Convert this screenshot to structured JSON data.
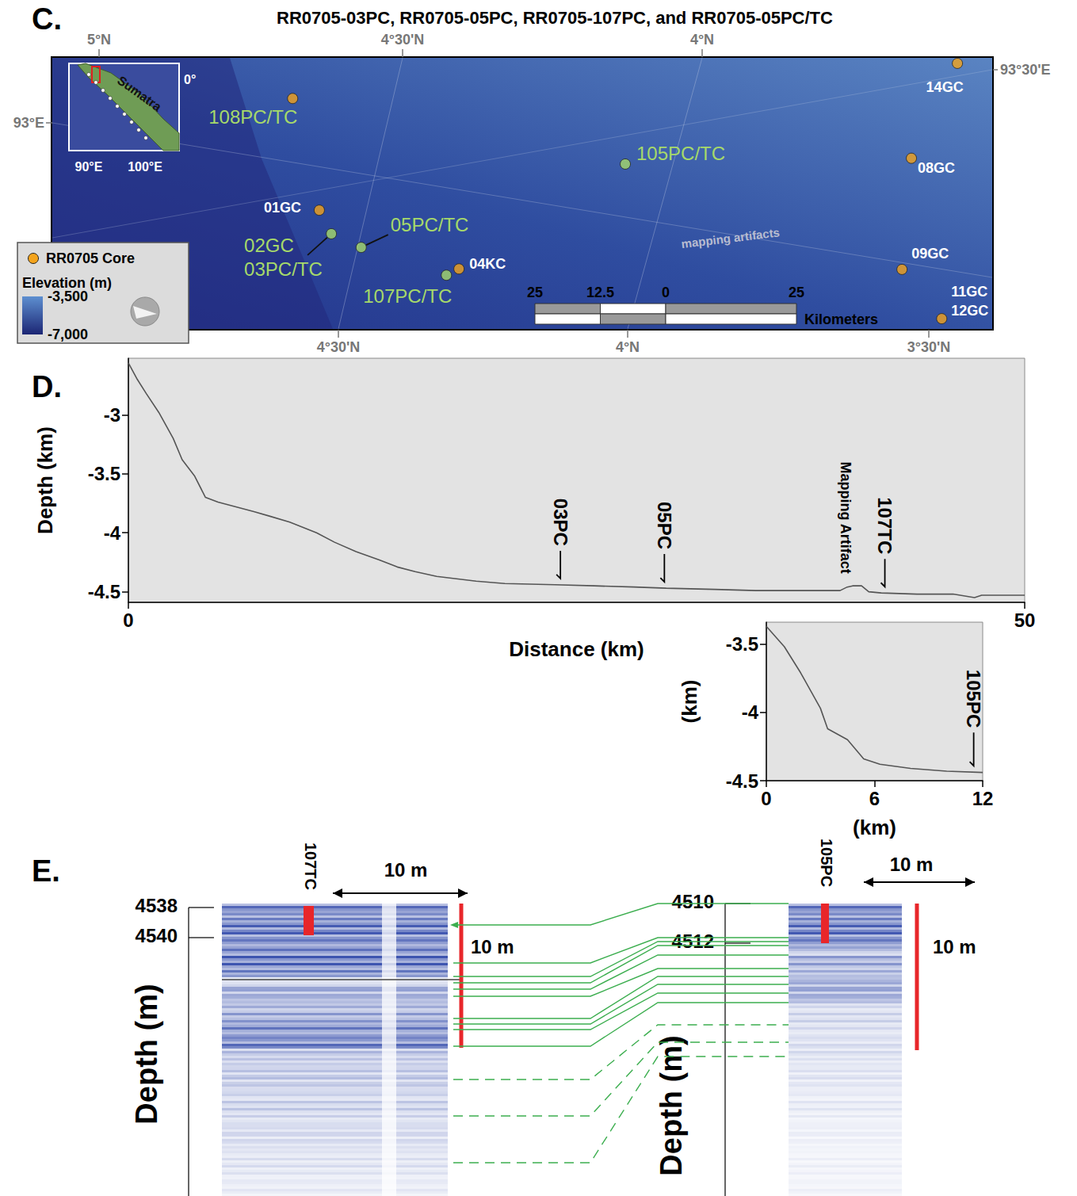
{
  "chart_data": [
    {
      "type": "scatter",
      "letter": "C.",
      "title": "RR0705-03PC, RR0705-05PC, RR0705-107PC, and RR0705-05PC/TC",
      "xlim": [
        0,
        180
      ],
      "ylim": [
        0,
        52
      ],
      "tick_labels": false,
      "grid": false,
      "legend": "bottom-left",
      "series": [
        {
          "name": "RR0705 Core",
          "color": "#f4a41d",
          "marker": "circle",
          "labels": [
            "108PC/TC",
            "01GC",
            "02GC\n03PC/TC",
            "05PC/TC",
            "107PC/TC",
            "04KC",
            "105PC/TC",
            "14GC",
            "08GC",
            "09GC",
            "11GC\n12GC"
          ],
          "x": [
            46.1,
            51.2,
            53.5,
            59.2,
            75.5,
            77.9,
            109.7,
            173.2,
            164.4,
            162.6,
            170.2
          ],
          "y": [
            44.1,
            22.8,
            18.3,
            15.7,
            10.4,
            11.6,
            31.6,
            50.8,
            32.7,
            11.5,
            2.1
          ],
          "colors": [
            "#f4a41d",
            "#f4a41d",
            "#a6d96a",
            "#a6d96a",
            "#a6d96a",
            "#f4a41d",
            "#a6d96a",
            "#f4a41d",
            "#f4a41d",
            "#f4a41d",
            "#f4a41d"
          ]
        }
      ],
      "graticule": {
        "top": [
          "5°N",
          "4°30'N",
          "4°N"
        ],
        "bottom": [
          "4°30'N",
          "4°N",
          "3°30'N"
        ],
        "left": [
          "93°E"
        ],
        "right": [
          "93°30'E"
        ]
      },
      "notes": [
        {
          "text": "mapping artifacts",
          "x": 129.8,
          "y": 17.5
        }
      ],
      "inset": {
        "land": "Sumatra",
        "latitude": "0°",
        "longitudes": [
          "90°E",
          "100°E"
        ]
      },
      "elevation_legend": {
        "title": "Elevation (m)",
        "range": [
          -3500,
          -7000
        ],
        "ticks": [
          {
            "value": -3500,
            "label": "-3,500"
          },
          {
            "value": -7000,
            "label": "-7,000"
          }
        ]
      },
      "scale_bar": {
        "unit": "Kilometers",
        "ticks": [
          {
            "value": -25,
            "label": "25"
          },
          {
            "value": -12.5,
            "label": "12.5"
          },
          0,
          25
        ]
      }
    },
    {
      "type": "line",
      "letter": "D.",
      "x_label": "Distance (km)",
      "y_label": "Depth (km)",
      "xlim": [
        0,
        50
      ],
      "xticks": [
        0,
        50
      ],
      "ylim": [
        -4.59,
        -2.52
      ],
      "yticks": [
        -4.5,
        -4,
        -3.5,
        -3
      ],
      "color": "#555555",
      "x": [
        0,
        0.5,
        1,
        1.7,
        2.5,
        3,
        3.7,
        4.3,
        5,
        6,
        7,
        7.9,
        9,
        10.5,
        11.5,
        12.7,
        14,
        15,
        16,
        17.2,
        18.3,
        19.4,
        21,
        23.8,
        26,
        28.2,
        30,
        32.7,
        35,
        38,
        39.7,
        40.1,
        40.4,
        40.9,
        41.3,
        42,
        44,
        46,
        47.2,
        47.6,
        48.1,
        50
      ],
      "values": [
        -2.56,
        -2.7,
        -2.82,
        -2.98,
        -3.2,
        -3.38,
        -3.52,
        -3.7,
        -3.74,
        -3.78,
        -3.82,
        -3.86,
        -3.91,
        -4.0,
        -4.08,
        -4.16,
        -4.23,
        -4.29,
        -4.33,
        -4.37,
        -4.39,
        -4.41,
        -4.43,
        -4.44,
        -4.45,
        -4.46,
        -4.47,
        -4.48,
        -4.49,
        -4.49,
        -4.49,
        -4.46,
        -4.45,
        -4.45,
        -4.5,
        -4.51,
        -4.52,
        -4.52,
        -4.55,
        -4.53,
        -4.53,
        -4.53
      ],
      "core_markers": [
        {
          "text": "03PC",
          "x": 24.1
        },
        {
          "text": "05PC",
          "x": 29.9
        },
        {
          "text": "107TC",
          "x": 42.2
        }
      ],
      "notes": [
        {
          "text": "Mapping Artifact",
          "x": 40.0
        }
      ]
    },
    {
      "type": "line",
      "x_label": "(km)",
      "y_label": "(km)",
      "xlim": [
        0,
        12
      ],
      "xticks": [
        0,
        6,
        12
      ],
      "ylim": [
        -4.5,
        -3.34
      ],
      "yticks": [
        -4.5,
        -4,
        -3.5
      ],
      "color": "#555555",
      "x": [
        0,
        1,
        1.9,
        3,
        3.4,
        4.5,
        5.4,
        6.3,
        8,
        10,
        12
      ],
      "values": [
        -3.37,
        -3.52,
        -3.71,
        -3.97,
        -4.12,
        -4.2,
        -4.34,
        -4.38,
        -4.41,
        -4.43,
        -4.44
      ],
      "core_markers": [
        {
          "text": "105PC",
          "x": 11.5
        }
      ]
    }
  ],
  "seismic": {
    "letter": "E.",
    "y_label": "Depth (m)",
    "sections": [
      {
        "core": "107TC",
        "depth_ticks": [
          4538,
          4540
        ],
        "width_label": "10 m",
        "length_label": "10 m"
      },
      {
        "core": "105PC",
        "depth_ticks": [
          4510,
          4512
        ],
        "width_label": "10 m",
        "length_label": "10 m"
      }
    ]
  }
}
